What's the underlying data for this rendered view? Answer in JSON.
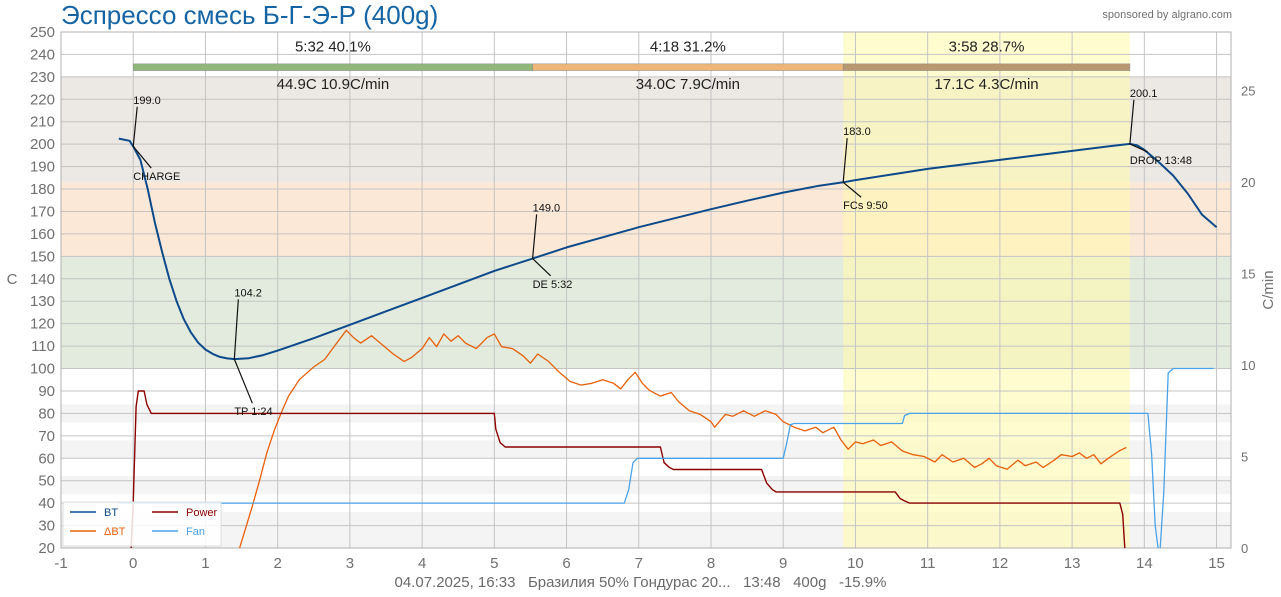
{
  "title": "Эспрессо смесь Б-Г-Э-Р (400g)",
  "sponsor": "sponsored by algrano.com",
  "footer": "04.07.2025, 16:33   Бразилия 50% Гондурас 20...   13:48   400g   -15.9%",
  "colors": {
    "bt": "#0d4a8a",
    "dbt": "#e8600a",
    "power": "#8b0000",
    "fan": "#4aa3e8",
    "phase_dry": "#8fb87a",
    "phase_maillard": "#f0b678",
    "phase_dev": "#b89870",
    "dev_window": "#fffab3"
  },
  "chart_data": {
    "type": "line",
    "xlabel": "",
    "ylabel": "C",
    "y2label": "C/min",
    "xlim": [
      -1,
      15.2
    ],
    "ylim": [
      20,
      250
    ],
    "y2lim": [
      0,
      28.2
    ],
    "x_ticks": [
      "-1",
      "0",
      "1",
      "2",
      "3",
      "4",
      "5",
      "6",
      "7",
      "8",
      "9",
      "10",
      "11",
      "12",
      "13",
      "14",
      "15"
    ],
    "y_ticks": [
      "20",
      "30",
      "40",
      "50",
      "60",
      "70",
      "80",
      "90",
      "100",
      "110",
      "120",
      "130",
      "140",
      "150",
      "160",
      "170",
      "180",
      "190",
      "200",
      "210",
      "220",
      "230",
      "240",
      "250"
    ],
    "y2_ticks": [
      "0",
      "5",
      "10",
      "15",
      "20",
      "25"
    ],
    "grid": true,
    "legend_position": "bottom-left",
    "legend": [
      {
        "key": "bt",
        "label": "BT"
      },
      {
        "key": "power",
        "label": "Power"
      },
      {
        "key": "dbt",
        "label": "ΔBT"
      },
      {
        "key": "fan",
        "label": "Fan"
      }
    ],
    "background_bands": [
      {
        "from": 20,
        "to": 36,
        "color": "#f4f4f4"
      },
      {
        "from": 44,
        "to": 52,
        "color": "#f4f4f4"
      },
      {
        "from": 60,
        "to": 68,
        "color": "#f4f4f4"
      },
      {
        "from": 76,
        "to": 84,
        "color": "#f4f4f4"
      },
      {
        "from": 100,
        "to": 150,
        "color": "#e2ebdd"
      },
      {
        "from": 150,
        "to": 183,
        "color": "#fbe8d6"
      },
      {
        "from": 183,
        "to": 230,
        "color": "#ece8e3"
      }
    ],
    "development_window": {
      "start": 9.83,
      "end": 13.8
    },
    "phases": [
      {
        "start": 0,
        "end": 5.53,
        "time_pct": "5:32  40.1%",
        "delta": "44.9C  10.9C/min",
        "color": "#8fb87a"
      },
      {
        "start": 5.53,
        "end": 9.83,
        "time_pct": "4:18  31.2%",
        "delta": "34.0C  7.9C/min",
        "color": "#f0b678"
      },
      {
        "start": 9.83,
        "end": 13.8,
        "time_pct": "3:58  28.7%",
        "delta": "17.1C  4.3C/min",
        "color": "#b89870"
      }
    ],
    "events": [
      {
        "x": 0,
        "y": 199.0,
        "value": "199.0",
        "label": "CHARGE"
      },
      {
        "x": 1.4,
        "y": 104.2,
        "value": "104.2",
        "label": "TP 1:24"
      },
      {
        "x": 5.53,
        "y": 149.0,
        "value": "149.0",
        "label": "DE 5:32"
      },
      {
        "x": 9.83,
        "y": 183.0,
        "value": "183.0",
        "label": "FCs 9:50"
      },
      {
        "x": 13.8,
        "y": 200.1,
        "value": "200.1",
        "label": "DROP 13:48"
      }
    ],
    "series": [
      {
        "name": "BT",
        "key": "bt",
        "axis": "left",
        "points": [
          [
            -0.2,
            202.5
          ],
          [
            -0.05,
            201.5
          ],
          [
            0,
            199
          ],
          [
            0.1,
            193
          ],
          [
            0.2,
            180
          ],
          [
            0.3,
            165
          ],
          [
            0.4,
            152
          ],
          [
            0.5,
            140
          ],
          [
            0.6,
            130
          ],
          [
            0.7,
            122
          ],
          [
            0.8,
            116
          ],
          [
            0.9,
            111.5
          ],
          [
            1,
            108.5
          ],
          [
            1.1,
            106.5
          ],
          [
            1.2,
            105.2
          ],
          [
            1.3,
            104.5
          ],
          [
            1.4,
            104.2
          ],
          [
            1.6,
            104.6
          ],
          [
            1.8,
            106
          ],
          [
            2,
            108
          ],
          [
            2.5,
            113.5
          ],
          [
            3,
            119.5
          ],
          [
            3.5,
            125.5
          ],
          [
            4,
            131.5
          ],
          [
            4.5,
            137.5
          ],
          [
            5,
            143.5
          ],
          [
            5.53,
            149
          ],
          [
            6,
            154
          ],
          [
            6.5,
            158.5
          ],
          [
            7,
            163
          ],
          [
            7.5,
            167
          ],
          [
            8,
            171
          ],
          [
            8.5,
            174.8
          ],
          [
            9,
            178.4
          ],
          [
            9.5,
            181.5
          ],
          [
            9.83,
            183
          ],
          [
            10,
            184
          ],
          [
            10.5,
            186.5
          ],
          [
            11,
            189
          ],
          [
            11.5,
            191
          ],
          [
            12,
            193
          ],
          [
            12.5,
            195
          ],
          [
            13,
            197
          ],
          [
            13.5,
            199
          ],
          [
            13.8,
            200.1
          ],
          [
            13.9,
            199.5
          ],
          [
            14,
            197.5
          ],
          [
            14.2,
            192
          ],
          [
            14.4,
            186
          ],
          [
            14.6,
            178
          ],
          [
            14.8,
            168.5
          ],
          [
            15,
            163
          ]
        ]
      },
      {
        "name": "ΔBT",
        "key": "dbt",
        "axis": "right",
        "points": [
          [
            1.45,
            -0.3
          ],
          [
            1.55,
            1
          ],
          [
            1.65,
            2.3
          ],
          [
            1.75,
            3.7
          ],
          [
            1.85,
            5.2
          ],
          [
            1.95,
            6.4
          ],
          [
            2.05,
            7.4
          ],
          [
            2.15,
            8.3
          ],
          [
            2.3,
            9.2
          ],
          [
            2.5,
            9.9
          ],
          [
            2.65,
            10.3
          ],
          [
            2.8,
            11.1
          ],
          [
            2.95,
            11.9
          ],
          [
            3.05,
            11.5
          ],
          [
            3.15,
            11.2
          ],
          [
            3.3,
            11.6
          ],
          [
            3.45,
            11.1
          ],
          [
            3.6,
            10.6
          ],
          [
            3.75,
            10.2
          ],
          [
            3.85,
            10.4
          ],
          [
            4,
            10.9
          ],
          [
            4.1,
            11.5
          ],
          [
            4.2,
            11
          ],
          [
            4.3,
            11.7
          ],
          [
            4.4,
            11.3
          ],
          [
            4.5,
            11.6
          ],
          [
            4.6,
            11.2
          ],
          [
            4.75,
            10.9
          ],
          [
            4.9,
            11.5
          ],
          [
            5,
            11.7
          ],
          [
            5.1,
            11
          ],
          [
            5.25,
            10.9
          ],
          [
            5.4,
            10.5
          ],
          [
            5.5,
            10.1
          ],
          [
            5.6,
            10.6
          ],
          [
            5.75,
            10.2
          ],
          [
            5.9,
            9.6
          ],
          [
            6.05,
            9.1
          ],
          [
            6.2,
            8.9
          ],
          [
            6.35,
            9
          ],
          [
            6.5,
            9.2
          ],
          [
            6.65,
            9
          ],
          [
            6.75,
            8.7
          ],
          [
            6.85,
            9.2
          ],
          [
            6.95,
            9.6
          ],
          [
            7.05,
            9
          ],
          [
            7.15,
            8.6
          ],
          [
            7.3,
            8.3
          ],
          [
            7.45,
            8.5
          ],
          [
            7.55,
            8
          ],
          [
            7.7,
            7.5
          ],
          [
            7.85,
            7.3
          ],
          [
            8,
            6.9
          ],
          [
            8.05,
            6.6
          ],
          [
            8.2,
            7.3
          ],
          [
            8.3,
            7.2
          ],
          [
            8.45,
            7.5
          ],
          [
            8.6,
            7.2
          ],
          [
            8.75,
            7.5
          ],
          [
            8.9,
            7.3
          ],
          [
            9,
            6.9
          ],
          [
            9.15,
            6.6
          ],
          [
            9.3,
            6.4
          ],
          [
            9.45,
            6.6
          ],
          [
            9.55,
            6.3
          ],
          [
            9.7,
            6.6
          ],
          [
            9.8,
            5.9
          ],
          [
            9.9,
            5.4
          ],
          [
            10,
            5.8
          ],
          [
            10.1,
            5.7
          ],
          [
            10.25,
            5.9
          ],
          [
            10.35,
            5.6
          ],
          [
            10.5,
            5.8
          ],
          [
            10.65,
            5.3
          ],
          [
            10.8,
            5.1
          ],
          [
            10.95,
            5
          ],
          [
            11.1,
            4.7
          ],
          [
            11.2,
            5.1
          ],
          [
            11.35,
            4.7
          ],
          [
            11.5,
            4.9
          ],
          [
            11.65,
            4.4
          ],
          [
            11.75,
            4.6
          ],
          [
            11.85,
            4.9
          ],
          [
            11.95,
            4.5
          ],
          [
            12.1,
            4.3
          ],
          [
            12.25,
            4.8
          ],
          [
            12.35,
            4.5
          ],
          [
            12.5,
            4.7
          ],
          [
            12.6,
            4.4
          ],
          [
            12.75,
            4.8
          ],
          [
            12.85,
            5.1
          ],
          [
            13,
            5
          ],
          [
            13.1,
            5.2
          ],
          [
            13.2,
            4.9
          ],
          [
            13.3,
            5.1
          ],
          [
            13.4,
            4.6
          ],
          [
            13.5,
            4.9
          ],
          [
            13.65,
            5.3
          ],
          [
            13.75,
            5.5
          ]
        ]
      },
      {
        "name": "Power",
        "key": "power",
        "axis": "left",
        "points": [
          [
            -0.03,
            20
          ],
          [
            0,
            40
          ],
          [
            0.04,
            83
          ],
          [
            0.07,
            90
          ],
          [
            0.15,
            90
          ],
          [
            0.19,
            84
          ],
          [
            0.25,
            80
          ],
          [
            5,
            80
          ],
          [
            5.02,
            73
          ],
          [
            5.08,
            67
          ],
          [
            5.15,
            65
          ],
          [
            6.9,
            65
          ],
          [
            7.3,
            65
          ],
          [
            7.35,
            58
          ],
          [
            7.42,
            56
          ],
          [
            7.48,
            55
          ],
          [
            8.7,
            55
          ],
          [
            8.77,
            49
          ],
          [
            8.85,
            46
          ],
          [
            8.9,
            45
          ],
          [
            10.55,
            45
          ],
          [
            10.62,
            42
          ],
          [
            10.68,
            41
          ],
          [
            10.75,
            40
          ],
          [
            13.66,
            40
          ],
          [
            13.7,
            35
          ],
          [
            13.73,
            20
          ]
        ]
      },
      {
        "name": "Fan",
        "key": "fan",
        "axis": "left",
        "points": [
          [
            -0.2,
            40
          ],
          [
            6.8,
            40
          ],
          [
            6.86,
            46
          ],
          [
            6.92,
            58
          ],
          [
            6.98,
            60
          ],
          [
            9,
            60
          ],
          [
            9.05,
            67
          ],
          [
            9.1,
            75
          ],
          [
            9.15,
            75.5
          ],
          [
            10.65,
            75.5
          ],
          [
            10.68,
            79
          ],
          [
            10.75,
            80
          ],
          [
            14.05,
            80
          ],
          [
            14.1,
            62
          ],
          [
            14.15,
            30
          ],
          [
            14.21,
            15
          ],
          [
            14.27,
            45
          ],
          [
            14.33,
            98
          ],
          [
            14.4,
            100
          ],
          [
            14.96,
            100
          ]
        ]
      }
    ]
  }
}
